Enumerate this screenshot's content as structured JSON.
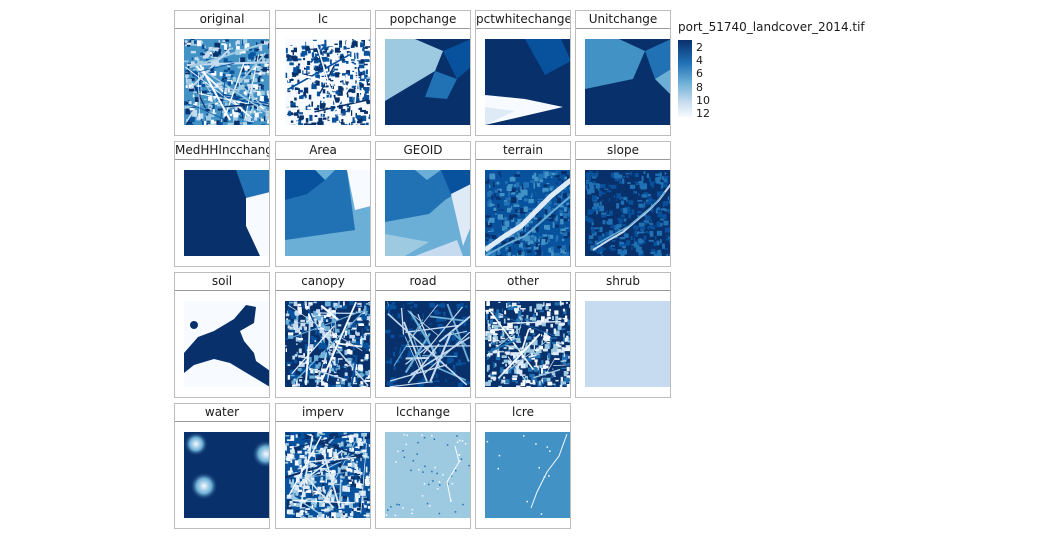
{
  "colors": {
    "c1": "#08306b",
    "c2": "#08519c",
    "c3": "#2171b5",
    "c4": "#4292c6",
    "c5": "#6baed6",
    "c6": "#9ecae1",
    "c7": "#c6dbef",
    "c8": "#deebf7",
    "c9": "#f7fbff",
    "panel_border": "#bdbdbd"
  },
  "chart_data": {
    "type": "heatmap",
    "legend": {
      "title": "port_51740_landcover_2014.tif",
      "ticks": [
        "2",
        "4",
        "6",
        "8",
        "10",
        "12"
      ],
      "placement": "right",
      "colorscale": "Blues (reversed)"
    },
    "panels": [
      {
        "label": "original"
      },
      {
        "label": "lc"
      },
      {
        "label": "popchange"
      },
      {
        "label": "pctwhitechange"
      },
      {
        "label": "Unitchange"
      },
      {
        "label": "MedHHIncchange"
      },
      {
        "label": "Area"
      },
      {
        "label": "GEOID"
      },
      {
        "label": "terrain"
      },
      {
        "label": "slope"
      },
      {
        "label": "soil"
      },
      {
        "label": "canopy"
      },
      {
        "label": "road"
      },
      {
        "label": "other"
      },
      {
        "label": "shrub"
      },
      {
        "label": "water"
      },
      {
        "label": "imperv"
      },
      {
        "label": "lcchange"
      },
      {
        "label": "lcre"
      }
    ]
  }
}
